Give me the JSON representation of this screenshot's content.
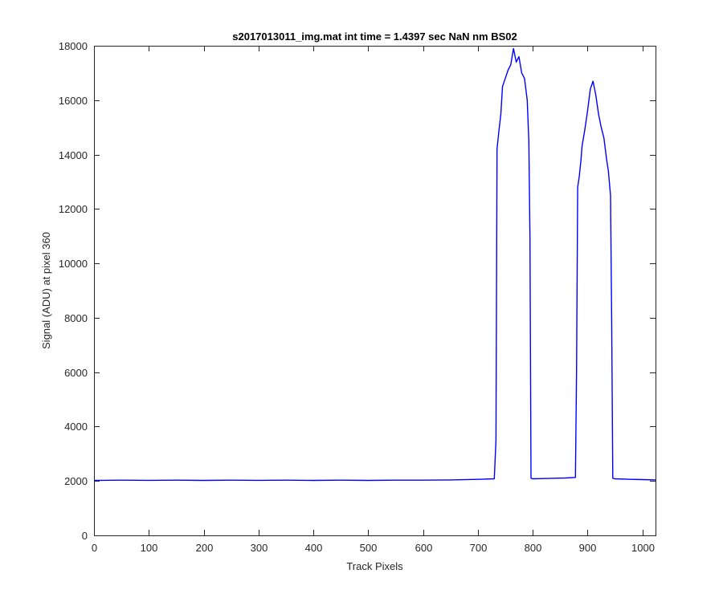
{
  "chart_data": {
    "type": "line",
    "title": "s2017013011_img.mat int time = 1.4397 sec  NaN nm BS02",
    "xlabel": "Track Pixels",
    "ylabel": "Signal (ADU) at pixel 360",
    "xlim": [
      0,
      1024
    ],
    "ylim": [
      0,
      18000
    ],
    "xticks": [
      0,
      100,
      200,
      300,
      400,
      500,
      600,
      700,
      800,
      900,
      1000
    ],
    "yticks": [
      0,
      2000,
      4000,
      6000,
      8000,
      10000,
      12000,
      14000,
      16000,
      18000
    ],
    "grid": false,
    "line_color": "#0000ff",
    "series": [
      {
        "x": [
          0,
          50,
          100,
          150,
          200,
          250,
          300,
          350,
          400,
          450,
          500,
          550,
          600,
          650,
          700,
          730,
          733,
          735,
          738,
          742,
          745,
          750,
          755,
          760,
          765,
          770,
          775,
          780,
          785,
          790,
          793,
          795,
          797,
          800,
          820,
          840,
          860,
          878,
          880,
          882,
          885,
          888,
          890,
          895,
          900,
          905,
          910,
          915,
          920,
          925,
          930,
          935,
          938,
          942,
          944,
          946,
          950,
          980,
          1000,
          1024
        ],
        "y": [
          2020,
          2030,
          2025,
          2030,
          2020,
          2030,
          2025,
          2030,
          2020,
          2030,
          2020,
          2030,
          2030,
          2040,
          2060,
          2080,
          3500,
          14200,
          14800,
          15500,
          16500,
          16800,
          17100,
          17300,
          17900,
          17400,
          17600,
          17000,
          16800,
          16000,
          14500,
          11000,
          2100,
          2080,
          2090,
          2100,
          2110,
          2130,
          6000,
          12800,
          13200,
          13800,
          14300,
          14900,
          15600,
          16400,
          16700,
          16200,
          15500,
          15000,
          14600,
          13800,
          13400,
          12500,
          8000,
          2100,
          2080,
          2060,
          2050,
          2040
        ]
      }
    ]
  }
}
